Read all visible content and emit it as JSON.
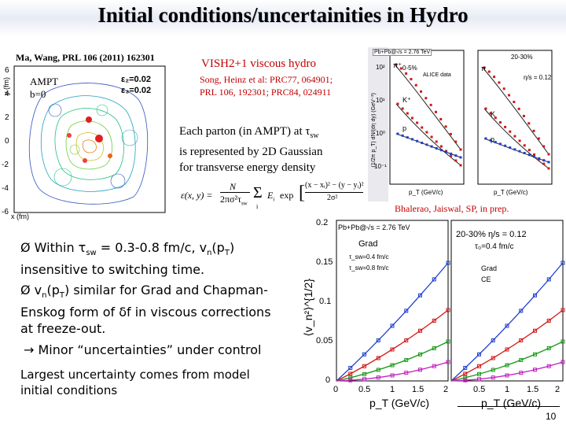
{
  "title": "Initial conditions/uncertainities in Hydro",
  "ampt_panel": {
    "ref": "Ma, Wang, PRL 106 (2011) 162301",
    "label1": "AMPT",
    "label2": "b=0",
    "ylabel": "y (fm)",
    "xlabel": "x (fm)",
    "legend1": "ε₂=0.02",
    "legend2": "ε₃=0.02",
    "yticks": [
      "6",
      "4",
      "2",
      "0",
      "-2",
      "-4",
      "-6"
    ],
    "xticks": [
      "-6",
      "-4",
      "-2",
      "0",
      "2",
      "4",
      "6"
    ]
  },
  "vish": {
    "name": "VISH2+1 viscous hydro",
    "refs_line1": "Song, Heinz et al: PRC77, 064901;",
    "refs_line2": "PRL 106, 192301; PRC84, 024911"
  },
  "gaussian_text": {
    "line1_pre": "Each parton (in AMPT) at τ",
    "line1_sub": "sw",
    "line2": "is represented by 2D Gaussian",
    "line3": "for transverse energy density"
  },
  "formula": {
    "lhs": "ε(x, y) =",
    "num": "N",
    "den": "2πσ²τ",
    "den_sub": "sw",
    "sum": "Σ",
    "sum_idx": "i",
    "term": "E",
    "term_sub": "i",
    "exp": "exp",
    "exp_num": "(x − xᵢ)² − (y − yᵢ)²",
    "exp_den": "2σ²"
  },
  "spectra_panel": {
    "ylabel": "(1/2π p_T) dN/(dη dy) (GeV⁻²)",
    "left_header": "Pb+Pb@√s = 2.76 TeV",
    "left_cent": "0-5%",
    "left_data": "ALICE data",
    "right_cent": "20-30%",
    "right_visc": "η/s = 0.12",
    "particles_left": [
      "π⁺",
      "K⁺",
      "p"
    ],
    "particles_right": [
      "π",
      "K",
      "p"
    ],
    "xlabel": "p_T (GeV/c)",
    "xticks": [
      "0.5",
      "1.0",
      "1.5",
      "2.0"
    ],
    "yticks": [
      "10²",
      "10¹",
      "10⁰",
      "10⁻¹"
    ]
  },
  "credit": "Bhalerao, Jaiswal, SP, in prep.",
  "v2_panel": {
    "ylabel": "⟨v_n²⟩^{1/2}",
    "yticks": [
      "0.2",
      "0.15",
      "0.1",
      "0.05",
      "0"
    ],
    "xticks": [
      "0",
      "0.5",
      "1",
      "1.5",
      "2"
    ],
    "xlabel": "p_T (GeV/c)",
    "left_header": "Pb+Pb@√s = 2.76 TeV",
    "left_label": "Grad",
    "left_leg1": "τ_sw=0.4 fm/c",
    "left_leg2": "τ_sw=0.8 fm/c",
    "right_header": "20-30%  η/s = 0.12",
    "right_tau": "τ₀=0.4 fm/c",
    "right_leg1": "Grad",
    "right_leg2": "CE"
  },
  "bullets": {
    "b1_pre": "Ø Within τ",
    "b1_sub": "sw",
    "b1_mid": " = 0.3-0.8 fm/c, v",
    "b1_sub2": "n",
    "b1_end": "(p",
    "b1_sub3": "T",
    "b1_end2": ")",
    "b1_line2": "insensitive to switching time.",
    "b2_pre": "Ø v",
    "b2_sub": "n",
    "b2_mid": "(p",
    "b2_sub2": "T",
    "b2_end": ") similar for Grad and Chapman-",
    "b2_line2": "Enskog form of δf in viscous corrections",
    "b2_line3": "at freeze-out.",
    "arrow_line": "→ Minor “uncertainties” under control",
    "largest1": "Largest uncertainty comes from model",
    "largest2": "initial conditions"
  },
  "page_number": "10",
  "colors": {
    "red": "#cc0000",
    "blue_series": "#1f3fd0",
    "red_series": "#d01818",
    "green_series": "#1a9a1a",
    "magenta_series": "#c020c0",
    "black_series": "#222222"
  }
}
